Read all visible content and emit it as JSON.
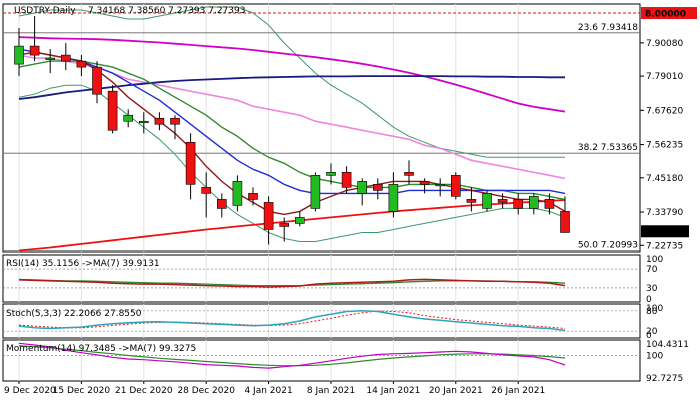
{
  "header": {
    "symbol": "USDTRY,Daily",
    "ohlc": "7.34168 7.38560 7.27393 7.27393"
  },
  "colors": {
    "bull": "#22bb22",
    "bear": "#ee1111",
    "sma_slow": "#1a1a80",
    "sma_mid": "#d000c8",
    "bb": "#3c9a6a",
    "ma_fast1": "#1f2bd6",
    "ma_fast2": "#2e8b2e",
    "ma_brown": "#8b1a1a",
    "ma_pink": "#ee88dd",
    "ma_red": "#ee1111"
  },
  "chart_data": {
    "type": "candlestick",
    "x_tick_labels": [
      "9 Dec 2020",
      "15 Dec 2020",
      "21 Dec 2020",
      "28 Dec 2020",
      "4 Jan 2021",
      "8 Jan 2021",
      "14 Jan 2021",
      "20 Jan 2021",
      "26 Jan 2021"
    ],
    "x_tick_index": [
      0,
      4,
      8,
      12,
      16,
      20,
      24,
      28,
      32
    ],
    "y_ticks": [
      "7.90080",
      "7.79010",
      "7.67620",
      "7.56235",
      "7.45180",
      "7.33790",
      "7.22735"
    ],
    "y_tick_values": [
      7.9008,
      7.7901,
      7.6762,
      7.56235,
      7.4518,
      7.3379,
      7.22735
    ],
    "ylim": [
      7.205,
      8.03
    ],
    "candles": [
      {
        "o": 7.83,
        "h": 7.95,
        "l": 7.79,
        "c": 7.89
      },
      {
        "o": 7.89,
        "h": 7.99,
        "l": 7.84,
        "c": 7.86
      },
      {
        "o": 7.85,
        "h": 7.88,
        "l": 7.8,
        "c": 7.85
      },
      {
        "o": 7.86,
        "h": 7.9,
        "l": 7.81,
        "c": 7.84
      },
      {
        "o": 7.84,
        "h": 7.86,
        "l": 7.79,
        "c": 7.82
      },
      {
        "o": 7.82,
        "h": 7.84,
        "l": 7.7,
        "c": 7.73
      },
      {
        "o": 7.74,
        "h": 7.76,
        "l": 7.6,
        "c": 7.61
      },
      {
        "o": 7.64,
        "h": 7.68,
        "l": 7.62,
        "c": 7.66
      },
      {
        "o": 7.64,
        "h": 7.67,
        "l": 7.6,
        "c": 7.64
      },
      {
        "o": 7.65,
        "h": 7.67,
        "l": 7.61,
        "c": 7.63
      },
      {
        "o": 7.65,
        "h": 7.66,
        "l": 7.58,
        "c": 7.63
      },
      {
        "o": 7.57,
        "h": 7.6,
        "l": 7.38,
        "c": 7.43
      },
      {
        "o": 7.42,
        "h": 7.47,
        "l": 7.32,
        "c": 7.4
      },
      {
        "o": 7.38,
        "h": 7.4,
        "l": 7.32,
        "c": 7.35
      },
      {
        "o": 7.36,
        "h": 7.46,
        "l": 7.34,
        "c": 7.44
      },
      {
        "o": 7.4,
        "h": 7.42,
        "l": 7.36,
        "c": 7.38
      },
      {
        "o": 7.37,
        "h": 7.39,
        "l": 7.23,
        "c": 7.28
      },
      {
        "o": 7.3,
        "h": 7.32,
        "l": 7.24,
        "c": 7.29
      },
      {
        "o": 7.3,
        "h": 7.34,
        "l": 7.29,
        "c": 7.32
      },
      {
        "o": 7.35,
        "h": 7.47,
        "l": 7.34,
        "c": 7.46
      },
      {
        "o": 7.46,
        "h": 7.5,
        "l": 7.43,
        "c": 7.47
      },
      {
        "o": 7.47,
        "h": 7.49,
        "l": 7.4,
        "c": 7.42
      },
      {
        "o": 7.4,
        "h": 7.45,
        "l": 7.36,
        "c": 7.44
      },
      {
        "o": 7.43,
        "h": 7.45,
        "l": 7.38,
        "c": 7.41
      },
      {
        "o": 7.34,
        "h": 7.47,
        "l": 7.32,
        "c": 7.43
      },
      {
        "o": 7.47,
        "h": 7.51,
        "l": 7.43,
        "c": 7.46
      },
      {
        "o": 7.44,
        "h": 7.45,
        "l": 7.4,
        "c": 7.43
      },
      {
        "o": 7.43,
        "h": 7.45,
        "l": 7.39,
        "c": 7.43
      },
      {
        "o": 7.46,
        "h": 7.47,
        "l": 7.38,
        "c": 7.39
      },
      {
        "o": 7.38,
        "h": 7.42,
        "l": 7.34,
        "c": 7.37
      },
      {
        "o": 7.35,
        "h": 7.41,
        "l": 7.34,
        "c": 7.4
      },
      {
        "o": 7.38,
        "h": 7.4,
        "l": 7.35,
        "c": 7.37
      },
      {
        "o": 7.38,
        "h": 7.4,
        "l": 7.33,
        "c": 7.35
      },
      {
        "o": 7.35,
        "h": 7.4,
        "l": 7.33,
        "c": 7.39
      },
      {
        "o": 7.38,
        "h": 7.4,
        "l": 7.33,
        "c": 7.35
      },
      {
        "o": 7.34,
        "h": 7.39,
        "l": 7.27,
        "c": 7.27
      }
    ],
    "price_lines": {
      "sma_slow": [
        7.714,
        7.72,
        7.728,
        7.736,
        7.742,
        7.748,
        7.754,
        7.76,
        7.765,
        7.77,
        7.774,
        7.777,
        7.779,
        7.781,
        7.783,
        7.785,
        7.786,
        7.787,
        7.788,
        7.789,
        7.789,
        7.789,
        7.79,
        7.79,
        7.79,
        7.79,
        7.79,
        7.79,
        7.789,
        7.789,
        7.788,
        7.788,
        7.787,
        7.787,
        7.786,
        7.786
      ],
      "sma_mid": [
        7.92,
        7.918,
        7.916,
        7.915,
        7.914,
        7.913,
        7.911,
        7.908,
        7.905,
        7.902,
        7.898,
        7.894,
        7.89,
        7.886,
        7.882,
        7.877,
        7.871,
        7.865,
        7.859,
        7.853,
        7.846,
        7.839,
        7.831,
        7.822,
        7.812,
        7.801,
        7.789,
        7.776,
        7.762,
        7.747,
        7.731,
        7.715,
        7.699,
        7.688,
        7.68,
        7.672
      ],
      "bb_upper": [
        7.99,
        8.0,
        8.01,
        8.01,
        8.01,
        8.0,
        7.99,
        7.98,
        7.98,
        7.99,
        8.0,
        8.01,
        8.02,
        8.02,
        8.02,
        8.0,
        7.96,
        7.9,
        7.85,
        7.8,
        7.76,
        7.73,
        7.7,
        7.66,
        7.62,
        7.59,
        7.57,
        7.55,
        7.54,
        7.53,
        7.52,
        7.52,
        7.52,
        7.52,
        7.52,
        7.52
      ],
      "bb_lower": [
        7.72,
        7.73,
        7.75,
        7.76,
        7.76,
        7.74,
        7.7,
        7.66,
        7.62,
        7.58,
        7.53,
        7.47,
        7.42,
        7.37,
        7.33,
        7.3,
        7.27,
        7.25,
        7.24,
        7.24,
        7.25,
        7.26,
        7.27,
        7.27,
        7.28,
        7.29,
        7.3,
        7.31,
        7.32,
        7.33,
        7.34,
        7.35,
        7.35,
        7.35,
        7.34,
        7.32
      ],
      "ma_fast1": [
        7.88,
        7.87,
        7.86,
        7.85,
        7.84,
        7.82,
        7.8,
        7.77,
        7.74,
        7.71,
        7.67,
        7.63,
        7.59,
        7.55,
        7.51,
        7.48,
        7.46,
        7.43,
        7.41,
        7.4,
        7.4,
        7.4,
        7.4,
        7.4,
        7.4,
        7.41,
        7.41,
        7.41,
        7.41,
        7.41,
        7.41,
        7.41,
        7.41,
        7.41,
        7.41,
        7.4
      ],
      "ma_fast2": [
        7.82,
        7.83,
        7.84,
        7.84,
        7.84,
        7.83,
        7.82,
        7.8,
        7.78,
        7.75,
        7.72,
        7.69,
        7.66,
        7.62,
        7.59,
        7.55,
        7.52,
        7.5,
        7.47,
        7.45,
        7.44,
        7.43,
        7.42,
        7.42,
        7.42,
        7.43,
        7.43,
        7.43,
        7.43,
        7.42,
        7.41,
        7.41,
        7.4,
        7.4,
        7.39,
        7.38
      ],
      "ma_brown": [
        7.86,
        7.87,
        7.86,
        7.85,
        7.84,
        7.81,
        7.77,
        7.72,
        7.68,
        7.64,
        7.6,
        7.55,
        7.49,
        7.44,
        7.4,
        7.37,
        7.34,
        7.33,
        7.34,
        7.37,
        7.39,
        7.41,
        7.42,
        7.43,
        7.44,
        7.44,
        7.44,
        7.43,
        7.42,
        7.41,
        7.4,
        7.39,
        7.38,
        7.38,
        7.37,
        7.34
      ],
      "ma_pink": [
        7.86,
        7.85,
        7.85,
        7.84,
        7.83,
        7.82,
        7.8,
        7.78,
        7.77,
        7.76,
        7.75,
        7.74,
        7.73,
        7.72,
        7.71,
        7.69,
        7.68,
        7.67,
        7.66,
        7.64,
        7.63,
        7.62,
        7.61,
        7.6,
        7.59,
        7.58,
        7.56,
        7.55,
        7.53,
        7.51,
        7.5,
        7.49,
        7.48,
        7.47,
        7.46,
        7.45
      ],
      "ma_red": [
        7.21,
        7.215,
        7.22,
        7.226,
        7.232,
        7.238,
        7.244,
        7.25,
        7.256,
        7.262,
        7.268,
        7.274,
        7.28,
        7.285,
        7.29,
        7.295,
        7.3,
        7.305,
        7.31,
        7.315,
        7.32,
        7.325,
        7.33,
        7.335,
        7.34,
        7.344,
        7.348,
        7.352,
        7.356,
        7.36,
        7.363,
        7.366,
        7.369,
        7.372,
        7.375,
        7.378
      ]
    },
    "levels": [
      {
        "label": "23.6 7.93418",
        "value": 7.93418
      },
      {
        "label": "38.2 7.53365",
        "value": 7.53365
      },
      {
        "label": "50.0 7.20993",
        "value": 7.20993
      }
    ],
    "top_level": {
      "value": 8.0,
      "label": "8.00000"
    },
    "last_price": {
      "value": 7.27393,
      "label": "7.27393"
    },
    "rsi": {
      "header": "RSI(14) 35.1156  ->MA(7) 39.9131",
      "ticks": [
        "100",
        "70",
        "30",
        "0"
      ],
      "tick_values": [
        100,
        70,
        30,
        0
      ],
      "rsi": [
        47,
        46,
        45,
        44,
        43,
        42,
        40,
        39,
        38,
        38,
        37,
        36,
        35,
        34,
        33,
        33,
        32,
        33,
        34,
        38,
        40,
        41,
        42,
        43,
        44,
        47,
        48,
        47,
        46,
        45,
        44,
        44,
        43,
        42,
        40,
        35
      ],
      "ma": [
        48,
        47,
        46,
        45,
        45,
        44,
        43,
        42,
        41,
        40,
        40,
        39,
        38,
        37,
        36,
        35,
        35,
        35,
        35,
        36,
        37,
        38,
        39,
        40,
        41,
        43,
        44,
        45,
        45,
        45,
        45,
        44,
        43,
        43,
        42,
        40
      ]
    },
    "stoch": {
      "header": "Stoch(5,3,3) 22.2066 27.8550",
      "ticks": [
        "100",
        "80",
        "20",
        "0"
      ],
      "tick_values": [
        100,
        80,
        20,
        0
      ],
      "k": [
        35,
        30,
        28,
        30,
        32,
        38,
        42,
        45,
        47,
        48,
        46,
        44,
        42,
        40,
        38,
        36,
        38,
        42,
        50,
        62,
        70,
        78,
        80,
        78,
        70,
        62,
        56,
        52,
        48,
        44,
        40,
        36,
        34,
        30,
        28,
        22
      ],
      "d": [
        38,
        35,
        32,
        30,
        30,
        33,
        37,
        41,
        44,
        46,
        47,
        46,
        44,
        42,
        40,
        38,
        37,
        38,
        42,
        50,
        58,
        67,
        74,
        79,
        78,
        74,
        66,
        60,
        54,
        50,
        46,
        42,
        38,
        35,
        32,
        28
      ]
    },
    "momentum": {
      "header": "Momentum(14) 97.3485  ->MA(7) 99.3275",
      "ticks": [
        "104.4311",
        "100",
        "92.7275"
      ],
      "tick_values": [
        104.4311,
        100,
        92.7275
      ],
      "ylim": [
        92.7275,
        104.4311
      ],
      "mom": [
        103.5,
        103.0,
        102.5,
        101.5,
        100.8,
        100.2,
        99.5,
        99.0,
        98.8,
        98.5,
        98.2,
        97.8,
        97.4,
        97.2,
        97.0,
        96.6,
        96.4,
        96.8,
        97.2,
        97.8,
        98.5,
        99.2,
        99.8,
        100.3,
        100.5,
        100.6,
        100.8,
        101.0,
        101.2,
        101.0,
        100.6,
        100.2,
        99.9,
        99.6,
        98.8,
        97.3
      ],
      "ma": [
        102.8,
        102.5,
        102.2,
        101.8,
        101.4,
        100.9,
        100.5,
        100.0,
        99.6,
        99.2,
        98.9,
        98.6,
        98.3,
        98.0,
        97.7,
        97.4,
        97.2,
        97.1,
        97.1,
        97.2,
        97.5,
        97.9,
        98.4,
        98.9,
        99.3,
        99.6,
        99.9,
        100.2,
        100.4,
        100.5,
        100.5,
        100.4,
        100.2,
        100.0,
        99.7,
        99.3
      ]
    }
  }
}
